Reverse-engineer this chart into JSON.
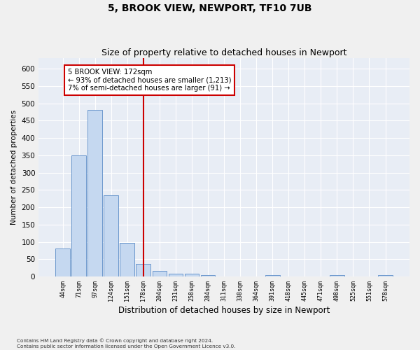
{
  "title": "5, BROOK VIEW, NEWPORT, TF10 7UB",
  "subtitle": "Size of property relative to detached houses in Newport",
  "xlabel": "Distribution of detached houses by size in Newport",
  "ylabel": "Number of detached properties",
  "categories": [
    "44sqm",
    "71sqm",
    "97sqm",
    "124sqm",
    "151sqm",
    "178sqm",
    "204sqm",
    "231sqm",
    "258sqm",
    "284sqm",
    "311sqm",
    "338sqm",
    "364sqm",
    "391sqm",
    "418sqm",
    "445sqm",
    "471sqm",
    "498sqm",
    "525sqm",
    "551sqm",
    "578sqm"
  ],
  "values": [
    82,
    350,
    480,
    235,
    97,
    37,
    16,
    8,
    8,
    5,
    0,
    0,
    0,
    5,
    0,
    0,
    0,
    5,
    0,
    0,
    5
  ],
  "bar_color": "#c5d8f0",
  "bar_edge_color": "#5b8cc8",
  "vline_x_index": 5,
  "vline_color": "#cc0000",
  "annotation_line1": "5 BROOK VIEW: 172sqm",
  "annotation_line2": "← 93% of detached houses are smaller (1,213)",
  "annotation_line3": "7% of semi-detached houses are larger (91) →",
  "annotation_box_color": "#ffffff",
  "annotation_box_edge_color": "#cc0000",
  "ylim": [
    0,
    630
  ],
  "yticks": [
    0,
    50,
    100,
    150,
    200,
    250,
    300,
    350,
    400,
    450,
    500,
    550,
    600
  ],
  "bg_color": "#e8edf5",
  "fig_color": "#f0f0f0",
  "title_fontsize": 10,
  "subtitle_fontsize": 9,
  "footer_line1": "Contains HM Land Registry data © Crown copyright and database right 2024.",
  "footer_line2": "Contains public sector information licensed under the Open Government Licence v3.0."
}
